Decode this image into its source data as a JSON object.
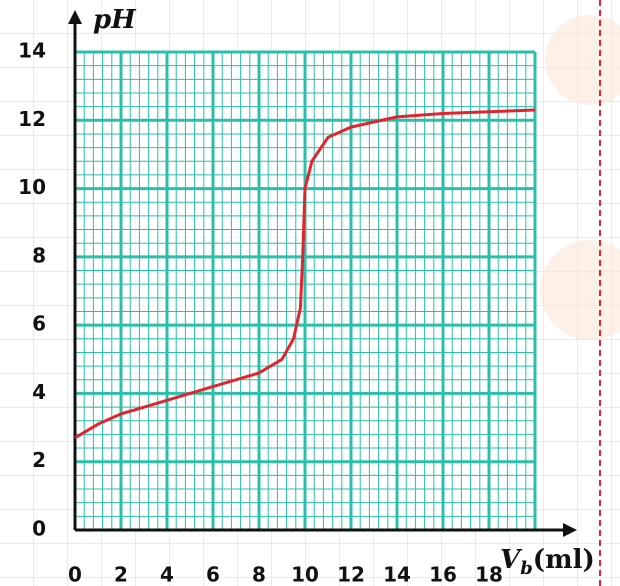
{
  "chart_data": {
    "type": "line",
    "ylabel": "pH",
    "xlabel": {
      "main": "V",
      "sub": "b",
      "unit": "(ml)"
    },
    "x": [
      0,
      1,
      2,
      4,
      6,
      8,
      9,
      9.5,
      9.8,
      9.9,
      10,
      10.3,
      11,
      12,
      14,
      16,
      18,
      20
    ],
    "series": [
      {
        "color": "#e0252f",
        "values": [
          2.7,
          3.1,
          3.4,
          3.8,
          4.2,
          4.6,
          5.0,
          5.6,
          6.5,
          8.0,
          10.0,
          10.8,
          11.5,
          11.8,
          12.1,
          12.2,
          12.25,
          12.3
        ]
      }
    ],
    "xlim": [
      0,
      20
    ],
    "ylim": [
      0,
      14
    ],
    "xticks": [
      0,
      2,
      4,
      6,
      8,
      10,
      12,
      14,
      16,
      18
    ],
    "yticks": [
      0,
      2,
      4,
      6,
      8,
      10,
      12,
      14
    ],
    "grid": true,
    "grid_color": "#2bbfaa"
  }
}
